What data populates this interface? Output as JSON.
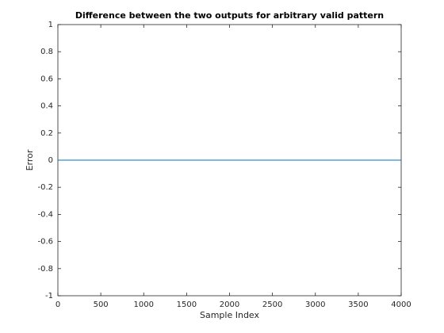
{
  "chart_data": {
    "type": "line",
    "title": "Difference between the two outputs for arbitrary valid pattern",
    "x_label": "Sample Index",
    "y_label": "Error",
    "x": [
      1,
      4000
    ],
    "series": [
      {
        "name": "Error",
        "color": "#0072bd",
        "values": [
          0,
          0
        ]
      }
    ],
    "xlim": [
      0,
      4000
    ],
    "xticks": [
      0,
      500,
      1000,
      1500,
      2000,
      2500,
      3000,
      3500,
      4000
    ],
    "ylim": [
      -1,
      1
    ],
    "yticks": [
      -1,
      -0.8,
      -0.6,
      -0.4,
      -0.2,
      0,
      0.2,
      0.4,
      0.6,
      0.8,
      1
    ],
    "grid": false
  }
}
